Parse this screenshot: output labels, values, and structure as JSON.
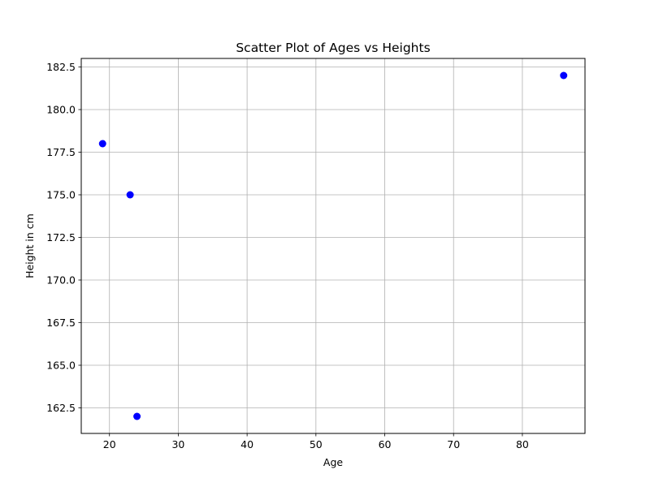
{
  "chart_data": {
    "type": "scatter",
    "title": "Scatter Plot of Ages vs Heights",
    "xlabel": "Age",
    "ylabel": "Height in cm",
    "xlim": [
      15.9,
      89.1
    ],
    "ylim": [
      161.0,
      183.0
    ],
    "x_ticks": [
      20,
      30,
      40,
      50,
      60,
      70,
      80
    ],
    "x_tick_labels": [
      "20",
      "30",
      "40",
      "50",
      "60",
      "70",
      "80"
    ],
    "y_ticks": [
      162.5,
      165.0,
      167.5,
      170.0,
      172.5,
      175.0,
      177.5,
      180.0,
      182.5
    ],
    "y_tick_labels": [
      "162.5",
      "165.0",
      "167.5",
      "170.0",
      "172.5",
      "175.0",
      "177.5",
      "180.0",
      "182.5"
    ],
    "grid": true,
    "marker_color": "#0000ff",
    "points": [
      {
        "x": 19,
        "y": 178
      },
      {
        "x": 23,
        "y": 175
      },
      {
        "x": 24,
        "y": 162
      },
      {
        "x": 86,
        "y": 182
      }
    ]
  }
}
